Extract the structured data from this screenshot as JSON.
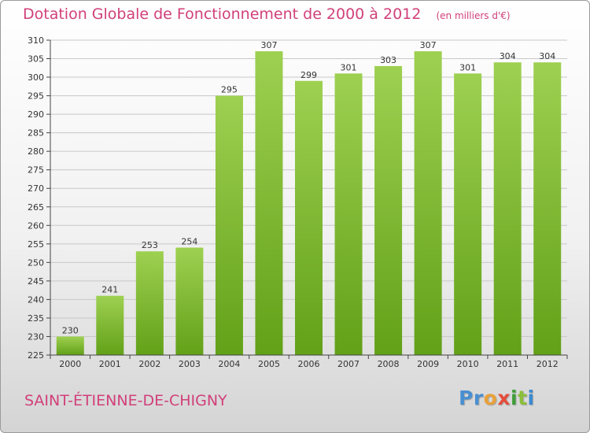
{
  "header": {
    "title": "Dotation Globale de Fonctionnement de 2000 à 2012",
    "unit": "(en milliers d'€)"
  },
  "footer": {
    "commune": "SAINT-ÉTIENNE-DE-CHIGNY",
    "logo": {
      "letters": [
        "P",
        "r",
        "o",
        "x",
        "i",
        "t",
        "i"
      ],
      "colors": [
        "#4a8fd0",
        "#4a8fd0",
        "#e8a13a",
        "#e44d3c",
        "#3f9d3a",
        "#8bbf3b",
        "#3a8ad0"
      ]
    }
  },
  "colors": {
    "bar_light": "#9ed051",
    "bar_dark": "#62a118",
    "accent": "#d1407a"
  },
  "chart_data": {
    "type": "bar",
    "categories": [
      "2000",
      "2001",
      "2002",
      "2003",
      "2004",
      "2005",
      "2006",
      "2007",
      "2008",
      "2009",
      "2010",
      "2011",
      "2012"
    ],
    "values": [
      230,
      241,
      253,
      254,
      295,
      307,
      299,
      301,
      303,
      307,
      301,
      304,
      304
    ],
    "yticks": [
      225,
      230,
      235,
      240,
      245,
      250,
      255,
      260,
      265,
      270,
      275,
      280,
      285,
      290,
      295,
      300,
      305,
      310
    ],
    "ylim": [
      225,
      310
    ],
    "grid": true,
    "title": "Dotation Globale de Fonctionnement de 2000 à 2012",
    "xlabel": "",
    "ylabel": ""
  }
}
